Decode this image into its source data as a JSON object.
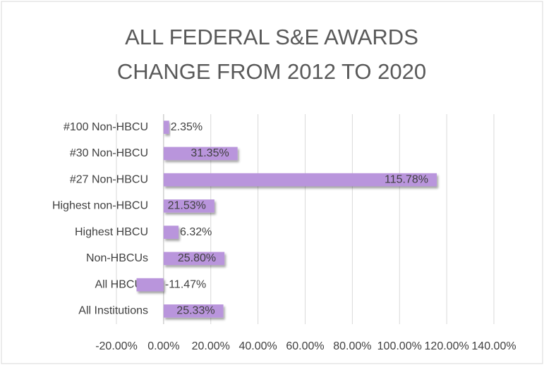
{
  "chart_data": {
    "type": "hbar",
    "title": [
      "ALL FEDERAL S&E AWARDS",
      "CHANGE FROM 2012 TO 2020"
    ],
    "categories": [
      "#100 Non-HBCU",
      "#30 Non-HBCU",
      "#27 Non-HBCU",
      "Highest non-HBCU",
      "Highest HBCU",
      "Non-HBCUs",
      "All HBCUs",
      "All Institutions"
    ],
    "values": [
      2.35,
      31.35,
      115.78,
      21.53,
      6.32,
      25.8,
      -11.47,
      25.33
    ],
    "value_labels": [
      "2.35%",
      "31.35%",
      "115.78%",
      "21.53%",
      "6.32%",
      "25.80%",
      "-11.47%",
      "25.33%"
    ],
    "color": "#b995dc",
    "xlim": [
      -20,
      140
    ],
    "xticks": [
      {
        "value": -20,
        "label": "-20.00%"
      },
      {
        "value": 0,
        "label": "0.00%"
      },
      {
        "value": 20,
        "label": "20.00%"
      },
      {
        "value": 40,
        "label": "40.00%"
      },
      {
        "value": 60,
        "label": "60.00%"
      },
      {
        "value": 80,
        "label": "80.00%"
      },
      {
        "value": 100,
        "label": "100.00%"
      },
      {
        "value": 120,
        "label": "120.00%"
      },
      {
        "value": 140,
        "label": "140.00%"
      }
    ],
    "grid": true
  }
}
